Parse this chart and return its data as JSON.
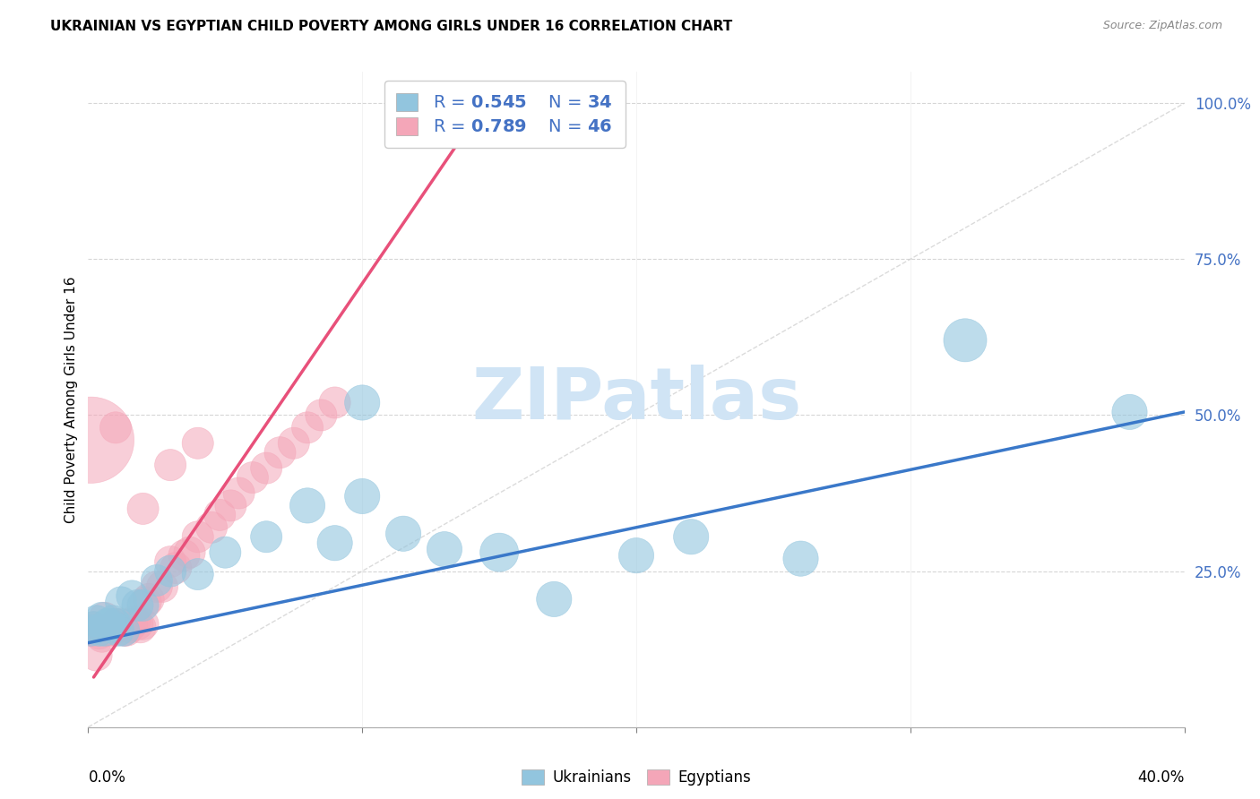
{
  "title": "UKRAINIAN VS EGYPTIAN CHILD POVERTY AMONG GIRLS UNDER 16 CORRELATION CHART",
  "source": "Source: ZipAtlas.com",
  "ylabel": "Child Poverty Among Girls Under 16",
  "xlim": [
    0.0,
    0.4
  ],
  "ylim": [
    0.0,
    1.05
  ],
  "blue_color": "#92c5de",
  "pink_color": "#f4a6b8",
  "blue_line_color": "#3a78c9",
  "pink_line_color": "#e8507a",
  "watermark": "ZIPatlas",
  "watermark_color": "#d0e4f5",
  "blue_line": [
    [
      0.0,
      0.4
    ],
    [
      0.135,
      0.505
    ]
  ],
  "pink_line": [
    [
      0.002,
      0.148
    ],
    [
      0.08,
      1.02
    ]
  ],
  "blue_scatter_x": [
    0.001,
    0.002,
    0.003,
    0.004,
    0.005,
    0.006,
    0.007,
    0.008,
    0.009,
    0.01,
    0.011,
    0.012,
    0.013,
    0.016,
    0.018,
    0.02,
    0.025,
    0.03,
    0.04,
    0.05,
    0.065,
    0.09,
    0.1,
    0.115,
    0.13,
    0.15,
    0.17,
    0.2,
    0.22,
    0.26,
    0.08,
    0.32,
    0.1,
    0.38
  ],
  "blue_scatter_y": [
    0.155,
    0.16,
    0.17,
    0.155,
    0.175,
    0.155,
    0.165,
    0.165,
    0.17,
    0.165,
    0.155,
    0.2,
    0.155,
    0.21,
    0.195,
    0.195,
    0.235,
    0.25,
    0.245,
    0.28,
    0.305,
    0.295,
    0.52,
    0.31,
    0.285,
    0.28,
    0.205,
    0.275,
    0.305,
    0.27,
    0.355,
    0.62,
    0.37,
    0.505
  ],
  "blue_scatter_size": [
    8,
    8,
    8,
    8,
    8,
    8,
    8,
    8,
    8,
    8,
    8,
    8,
    8,
    8,
    8,
    8,
    8,
    8,
    8,
    8,
    8,
    10,
    10,
    10,
    10,
    12,
    10,
    10,
    10,
    10,
    10,
    15,
    10,
    10
  ],
  "pink_scatter_x": [
    0.001,
    0.002,
    0.003,
    0.004,
    0.005,
    0.006,
    0.007,
    0.008,
    0.009,
    0.01,
    0.011,
    0.012,
    0.013,
    0.014,
    0.015,
    0.016,
    0.017,
    0.018,
    0.019,
    0.02,
    0.021,
    0.022,
    0.025,
    0.027,
    0.03,
    0.032,
    0.035,
    0.037,
    0.04,
    0.045,
    0.048,
    0.052,
    0.055,
    0.06,
    0.065,
    0.07,
    0.075,
    0.08,
    0.085,
    0.09,
    0.01,
    0.02,
    0.03,
    0.04,
    0.001,
    0.003
  ],
  "pink_scatter_y": [
    0.155,
    0.16,
    0.155,
    0.15,
    0.145,
    0.175,
    0.155,
    0.155,
    0.16,
    0.165,
    0.16,
    0.165,
    0.155,
    0.155,
    0.16,
    0.165,
    0.17,
    0.165,
    0.16,
    0.165,
    0.2,
    0.205,
    0.225,
    0.225,
    0.265,
    0.255,
    0.275,
    0.28,
    0.305,
    0.32,
    0.34,
    0.355,
    0.375,
    0.4,
    0.415,
    0.44,
    0.455,
    0.48,
    0.5,
    0.52,
    0.48,
    0.35,
    0.42,
    0.455,
    0.46,
    0.115
  ],
  "pink_scatter_size": [
    8,
    8,
    8,
    8,
    8,
    8,
    8,
    8,
    8,
    8,
    8,
    8,
    8,
    8,
    8,
    8,
    8,
    8,
    8,
    8,
    8,
    8,
    8,
    8,
    8,
    8,
    8,
    8,
    8,
    8,
    8,
    8,
    8,
    8,
    8,
    8,
    8,
    8,
    8,
    8,
    8,
    8,
    8,
    8,
    60,
    8
  ],
  "legend_r_blue": "0.545",
  "legend_n_blue": "34",
  "legend_r_pink": "0.789",
  "legend_n_pink": "46"
}
